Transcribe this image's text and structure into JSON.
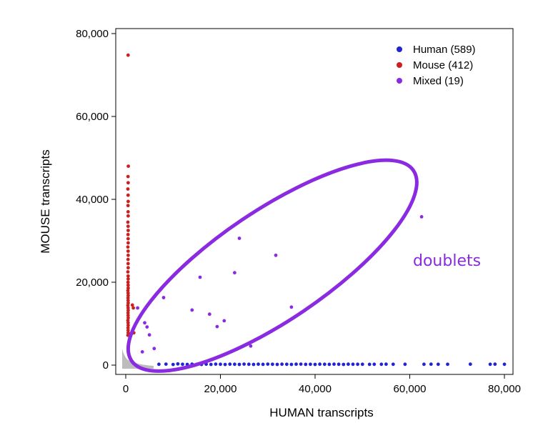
{
  "chart_data": {
    "type": "scatter",
    "xlabel": "HUMAN transcripts",
    "ylabel": "MOUSE transcripts",
    "xlim": [
      -2000,
      81000
    ],
    "ylim": [
      -2000,
      81000
    ],
    "xticks": [
      0,
      20000,
      40000,
      60000,
      80000
    ],
    "yticks": [
      0,
      20000,
      40000,
      60000,
      80000
    ],
    "xtick_labels": [
      "0",
      "20,000",
      "40,000",
      "60,000",
      "80,000"
    ],
    "ytick_labels": [
      "0",
      "20,000",
      "40,000",
      "60,000",
      "80,000"
    ],
    "grid": false,
    "legend": "top-right",
    "annotation": {
      "text": "doublets",
      "color": "#8a2be2",
      "ellipse_center": [
        31000,
        24000
      ],
      "ellipse_rotation_deg": -34
    },
    "background_cloud_color": "#b0b0b0",
    "series": [
      {
        "name": "Human (589)",
        "color": "#2323d6",
        "points": [
          [
            7000,
            200
          ],
          [
            8500,
            250
          ],
          [
            10000,
            150
          ],
          [
            11000,
            300
          ],
          [
            12000,
            200
          ],
          [
            13000,
            180
          ],
          [
            14000,
            250
          ],
          [
            15000,
            200
          ],
          [
            16000,
            150
          ],
          [
            17000,
            220
          ],
          [
            18000,
            180
          ],
          [
            19000,
            250
          ],
          [
            20000,
            200
          ],
          [
            21000,
            150
          ],
          [
            22000,
            230
          ],
          [
            23000,
            200
          ],
          [
            24000,
            180
          ],
          [
            25000,
            250
          ],
          [
            26000,
            200
          ],
          [
            27000,
            170
          ],
          [
            28000,
            220
          ],
          [
            29000,
            190
          ],
          [
            30000,
            240
          ],
          [
            31000,
            200
          ],
          [
            32000,
            180
          ],
          [
            33000,
            230
          ],
          [
            34000,
            200
          ],
          [
            35000,
            170
          ],
          [
            36000,
            220
          ],
          [
            37000,
            250
          ],
          [
            38000,
            190
          ],
          [
            39000,
            200
          ],
          [
            40000,
            180
          ],
          [
            41000,
            220
          ],
          [
            42000,
            200
          ],
          [
            43000,
            190
          ],
          [
            44000,
            230
          ],
          [
            45000,
            200
          ],
          [
            46000,
            180
          ],
          [
            47000,
            220
          ],
          [
            48000,
            200
          ],
          [
            49000,
            200
          ],
          [
            50000,
            210
          ],
          [
            51500,
            190
          ],
          [
            52500,
            210
          ],
          [
            54000,
            200
          ],
          [
            55000,
            220
          ],
          [
            56500,
            200
          ],
          [
            59000,
            210
          ],
          [
            63000,
            200
          ],
          [
            64500,
            220
          ],
          [
            66000,
            210
          ],
          [
            68000,
            200
          ],
          [
            72800,
            230
          ],
          [
            77000,
            200
          ],
          [
            78000,
            220
          ],
          [
            80000,
            200
          ]
        ]
      },
      {
        "name": "Mouse (412)",
        "color": "#cc2020",
        "points": [
          [
            500,
            74800
          ],
          [
            550,
            48000
          ],
          [
            480,
            45500
          ],
          [
            520,
            44000
          ],
          [
            460,
            42500
          ],
          [
            500,
            41000
          ],
          [
            520,
            39500
          ],
          [
            480,
            38500
          ],
          [
            500,
            37000
          ],
          [
            520,
            36000
          ],
          [
            460,
            34500
          ],
          [
            500,
            33500
          ],
          [
            520,
            32500
          ],
          [
            480,
            31500
          ],
          [
            500,
            30500
          ],
          [
            520,
            29500
          ],
          [
            460,
            28500
          ],
          [
            500,
            27500
          ],
          [
            520,
            26500
          ],
          [
            480,
            25500
          ],
          [
            500,
            24500
          ],
          [
            520,
            23500
          ],
          [
            460,
            22500
          ],
          [
            500,
            21500
          ],
          [
            520,
            20800
          ],
          [
            480,
            20000
          ],
          [
            500,
            19300
          ],
          [
            520,
            18600
          ],
          [
            460,
            18000
          ],
          [
            500,
            17400
          ],
          [
            520,
            16800
          ],
          [
            480,
            16200
          ],
          [
            500,
            15600
          ],
          [
            520,
            15000
          ],
          [
            460,
            14400
          ],
          [
            500,
            13800
          ],
          [
            520,
            13200
          ],
          [
            480,
            12600
          ],
          [
            500,
            12000
          ],
          [
            520,
            11400
          ],
          [
            460,
            10800
          ],
          [
            500,
            10200
          ],
          [
            520,
            9600
          ],
          [
            480,
            9000
          ],
          [
            500,
            8400
          ],
          [
            520,
            7800
          ],
          [
            460,
            7200
          ],
          [
            1400,
            14500
          ],
          [
            1600,
            13800
          ],
          [
            1700,
            7800
          ]
        ]
      },
      {
        "name": "Mixed (19)",
        "color": "#8a2be2",
        "points": [
          [
            62500,
            35800
          ],
          [
            21000,
            32200
          ],
          [
            24000,
            30600
          ],
          [
            31700,
            26500
          ],
          [
            23000,
            22300
          ],
          [
            15700,
            21200
          ],
          [
            8000,
            16300
          ],
          [
            2500,
            13800
          ],
          [
            14000,
            13300
          ],
          [
            17700,
            12300
          ],
          [
            35000,
            14000
          ],
          [
            20800,
            10700
          ],
          [
            19300,
            9300
          ],
          [
            4000,
            10200
          ],
          [
            4500,
            9200
          ],
          [
            5000,
            7300
          ],
          [
            26400,
            4600
          ],
          [
            6000,
            4000
          ],
          [
            3500,
            3200
          ]
        ]
      }
    ]
  }
}
